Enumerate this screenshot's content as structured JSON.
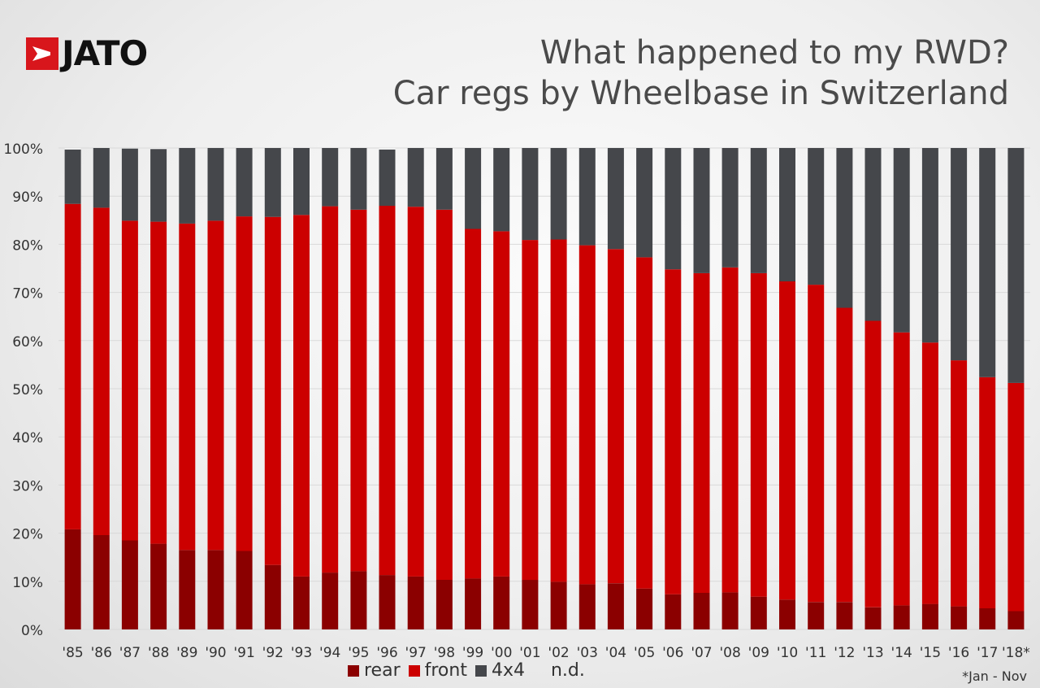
{
  "brand": {
    "logo_text": "JATO"
  },
  "title": {
    "line1": "What happened to my RWD?",
    "line2": "Car regs by Wheelbase in Switzerland"
  },
  "footnote": "*Jan - Nov",
  "colors": {
    "rear": "#8b0000",
    "front": "#cc0000",
    "4x4": "#45474b",
    "nd": "#f3f3f3",
    "grid": "#d9d9d9"
  },
  "chart_data": {
    "type": "bar",
    "stacked": true,
    "categories": [
      "'85",
      "'86",
      "'87",
      "'88",
      "'89",
      "'90",
      "'91",
      "'92",
      "'93",
      "'94",
      "'95",
      "'96",
      "'97",
      "'98",
      "'99",
      "'00",
      "'01",
      "'02",
      "'03",
      "'04",
      "'05",
      "'06",
      "'07",
      "'08",
      "'09",
      "'10",
      "'11",
      "'12",
      "'13",
      "'14",
      "'15",
      "'16",
      "'17",
      "'18*"
    ],
    "ylim": [
      0,
      100
    ],
    "yticks": [
      "0%",
      "10%",
      "20%",
      "30%",
      "40%",
      "50%",
      "60%",
      "70%",
      "80%",
      "90%",
      "100%"
    ],
    "grid": true,
    "legend_position": "bottom",
    "series": [
      {
        "name": "rear",
        "values": [
          20.8,
          19.6,
          18.5,
          17.8,
          16.5,
          16.5,
          16.3,
          13.4,
          11.0,
          11.8,
          12.1,
          11.3,
          11.0,
          10.3,
          10.6,
          11.0,
          10.3,
          9.9,
          9.4,
          9.6,
          8.5,
          7.3,
          7.6,
          7.7,
          6.8,
          6.2,
          5.7,
          5.7,
          4.6,
          5.0,
          5.3,
          4.8,
          4.4,
          3.8
        ]
      },
      {
        "name": "front",
        "values": [
          67.6,
          68.0,
          66.4,
          66.9,
          67.8,
          68.4,
          69.5,
          72.3,
          75.1,
          76.1,
          75.1,
          76.7,
          76.8,
          76.9,
          72.6,
          71.7,
          70.6,
          71.1,
          70.4,
          69.4,
          68.8,
          67.5,
          66.4,
          67.5,
          67.2,
          66.1,
          65.9,
          61.1,
          59.5,
          56.7,
          54.3,
          51.1,
          48.0,
          47.4
        ]
      },
      {
        "name": "4x4",
        "values": [
          11.3,
          12.4,
          15.0,
          15.1,
          15.7,
          15.1,
          14.2,
          14.3,
          13.9,
          12.1,
          12.8,
          11.7,
          12.2,
          12.8,
          16.8,
          17.3,
          19.1,
          19.0,
          20.2,
          21.0,
          22.7,
          25.2,
          26.0,
          24.8,
          26.0,
          27.7,
          28.4,
          33.2,
          35.9,
          38.3,
          40.4,
          44.1,
          47.6,
          48.8
        ]
      },
      {
        "name": "n.d.",
        "values": [
          0.3,
          0,
          0.1,
          0.2,
          0,
          0,
          0,
          0,
          0,
          0,
          0,
          0.3,
          0,
          0,
          0,
          0,
          0,
          0,
          0,
          0,
          0,
          0,
          0,
          0,
          0,
          0,
          0,
          0,
          0,
          0,
          0,
          0,
          0,
          0
        ]
      }
    ]
  }
}
